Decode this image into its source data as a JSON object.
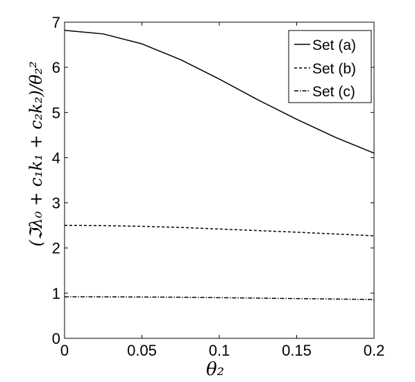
{
  "chart_data": {
    "type": "line",
    "xlabel": "θ₂",
    "ylabel": "(ℑλ₀ + c₁k₁ + c₂k₂)/θ₂²",
    "xlim": [
      0,
      0.2
    ],
    "ylim": [
      0,
      7
    ],
    "x_ticks": [
      "0",
      "0.05",
      "0.1",
      "0.15",
      "0.2"
    ],
    "y_ticks": [
      "0",
      "1",
      "2",
      "3",
      "4",
      "5",
      "6",
      "7"
    ],
    "grid": false,
    "legend_position": "top-right",
    "x": [
      0,
      0.025,
      0.05,
      0.075,
      0.1,
      0.125,
      0.15,
      0.175,
      0.2
    ],
    "series": [
      {
        "name": "Set (a)",
        "style": "solid",
        "values": [
          6.82,
          6.74,
          6.52,
          6.17,
          5.74,
          5.28,
          4.85,
          4.45,
          4.1
        ]
      },
      {
        "name": "Set (b)",
        "style": "dashed",
        "values": [
          2.5,
          2.495,
          2.48,
          2.455,
          2.42,
          2.385,
          2.35,
          2.31,
          2.27
        ]
      },
      {
        "name": "Set (c)",
        "style": "dashdot",
        "values": [
          0.92,
          0.918,
          0.915,
          0.91,
          0.9,
          0.89,
          0.88,
          0.87,
          0.86
        ]
      }
    ],
    "colors": {
      "line": "#000000",
      "background": "#ffffff"
    }
  }
}
